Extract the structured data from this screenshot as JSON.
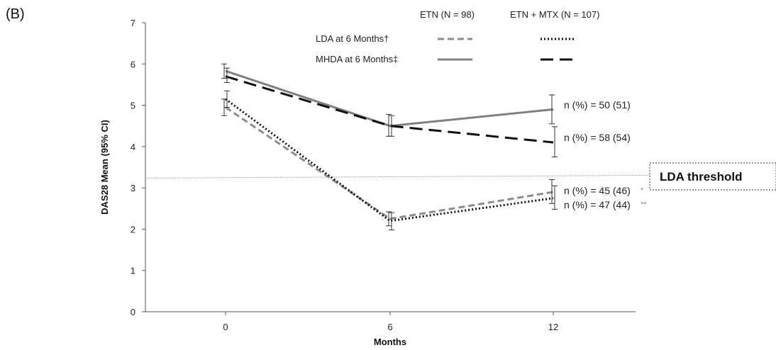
{
  "panel_label": "(B)",
  "chart_data": {
    "type": "line",
    "xlabel": "Months",
    "ylabel": "DAS28 Mean (95% CI)",
    "x": [
      0,
      6,
      12
    ],
    "x_ticks": [
      "0",
      "6",
      "12"
    ],
    "y_ticks": [
      "0",
      "1",
      "2",
      "3",
      "4",
      "5",
      "6",
      "7"
    ],
    "ylim": [
      0,
      7
    ],
    "grid": false,
    "legend": {
      "position": "top",
      "column_headers": [
        "ETN (N = 98)",
        "ETN + MTX (N = 107)"
      ],
      "row_labels": [
        "LDA at 6 Months†",
        "MHDA at 6 Months‡"
      ]
    },
    "series": [
      {
        "group": "LDA",
        "arm": "ETN",
        "style": "gray-dashed",
        "color": "#8c8c8c",
        "values": [
          4.95,
          2.25,
          2.9
        ],
        "ci_low": [
          4.75,
          2.08,
          2.62
        ],
        "ci_high": [
          5.15,
          2.42,
          3.2
        ],
        "annotation": "n (%) = 45 (46)",
        "annotation_mark": "*"
      },
      {
        "group": "LDA",
        "arm": "ETN + MTX",
        "style": "black-dotted",
        "color": "#111111",
        "values": [
          5.15,
          2.2,
          2.75
        ],
        "ci_low": [
          4.95,
          1.98,
          2.48
        ],
        "ci_high": [
          5.35,
          2.4,
          3.05
        ],
        "annotation": "n (%) = 47 (44)",
        "annotation_mark": "**"
      },
      {
        "group": "MHDA",
        "arm": "ETN",
        "style": "gray-solid",
        "color": "#808080",
        "values": [
          5.83,
          4.5,
          4.9
        ],
        "ci_low": [
          5.65,
          4.25,
          4.55
        ],
        "ci_high": [
          6.0,
          4.78,
          5.25
        ],
        "annotation": "n (%) = 50 (51)"
      },
      {
        "group": "MHDA",
        "arm": "ETN + MTX",
        "style": "black-dashed",
        "color": "#111111",
        "values": [
          5.7,
          4.5,
          4.1
        ],
        "ci_low": [
          5.55,
          4.25,
          3.75
        ],
        "ci_high": [
          5.9,
          4.75,
          4.48
        ],
        "annotation": "n (%)  = 58 (54)"
      }
    ],
    "threshold": {
      "label": "LDA threshold",
      "value": 3.27
    }
  }
}
